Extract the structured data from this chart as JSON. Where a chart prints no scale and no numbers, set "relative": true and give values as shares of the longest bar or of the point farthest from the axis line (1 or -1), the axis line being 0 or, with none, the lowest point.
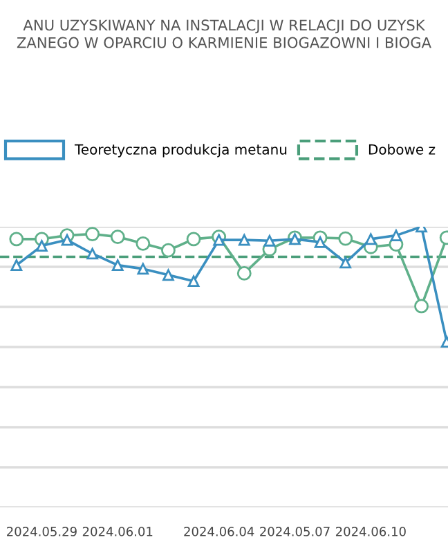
{
  "chart_data": {
    "type": "line",
    "relative": true,
    "title": "ANU UZYSKIWANY NA INSTALACJI W RELACJI DO UZYSK\nZANEGO W OPARCIU O KARMIENIE BIOGAZOWNI I BIOGA",
    "categories": [
      null,
      "2024.05.29",
      null,
      null,
      "2024.06.01",
      null,
      null,
      null,
      "2024.06.04",
      null,
      null,
      "2024.05.07",
      null,
      null,
      "2024.06.10",
      null,
      null,
      null
    ],
    "series": [
      {
        "color": "#5fb08a",
        "marker": "circle",
        "values": [
          0.956,
          0.956,
          0.969,
          0.974,
          0.964,
          0.94,
          0.916,
          0.956,
          0.964,
          0.834,
          0.92,
          0.961,
          0.961,
          0.958,
          0.928,
          0.937,
          0.717,
          0.961
        ]
      },
      {
        "name": "Teoretyczna produkcja metanu",
        "color": "#3a8fc0",
        "marker": "triangle",
        "values": [
          0.863,
          0.932,
          0.953,
          0.904,
          0.863,
          0.85,
          0.828,
          0.806,
          0.953,
          0.953,
          0.95,
          0.956,
          0.945,
          0.872,
          0.956,
          0.969,
          1.0,
          0.59
        ]
      }
    ],
    "ref_lines": [
      {
        "axis": "y",
        "value": 0.893,
        "label": "Dobowe z",
        "color": "#4a9e7a",
        "line_style": "dashed"
      }
    ],
    "grid": "y",
    "legend": "top"
  }
}
